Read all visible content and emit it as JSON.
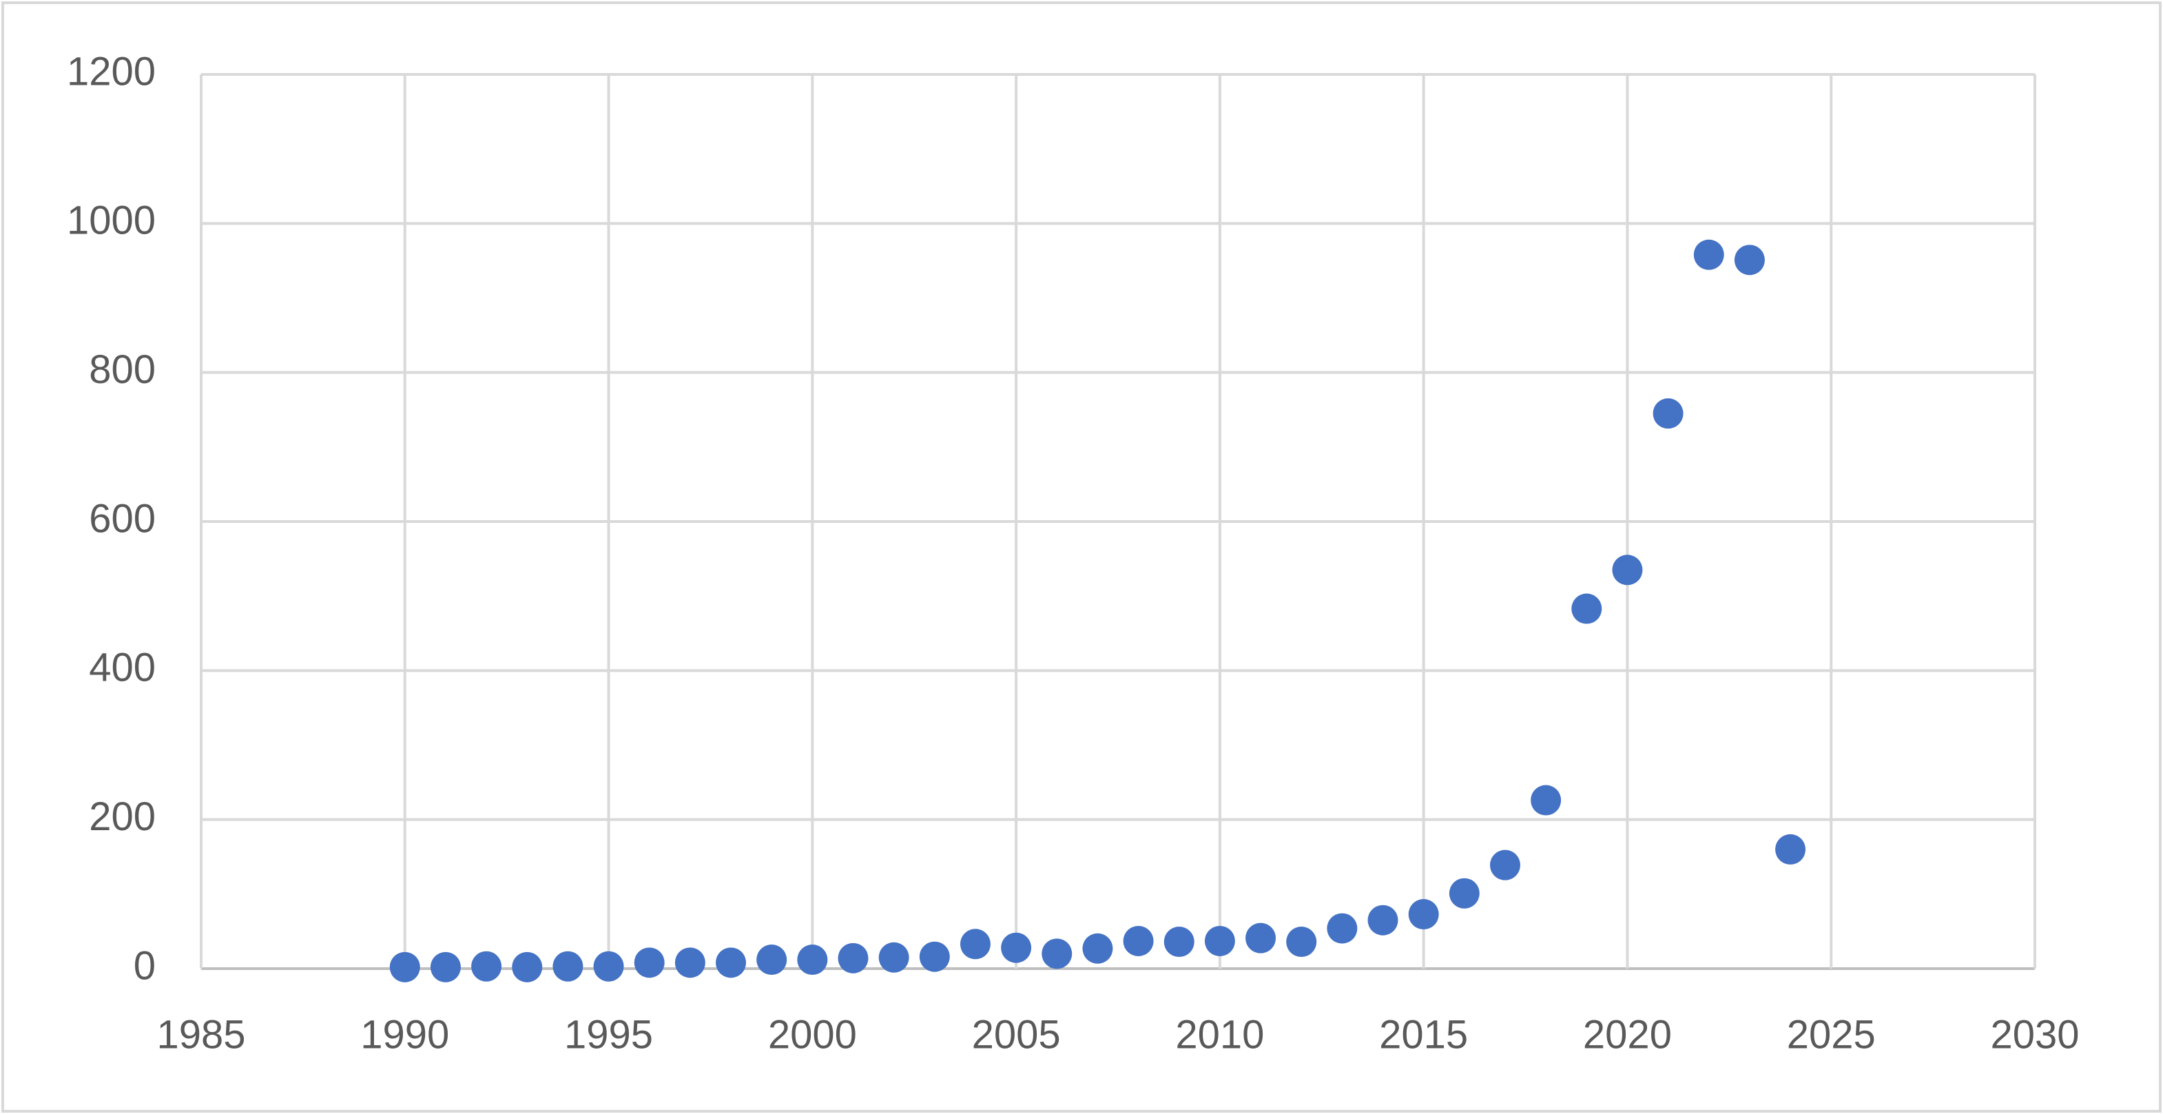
{
  "chart_data": {
    "type": "scatter",
    "x": [
      1990,
      1991,
      1992,
      1993,
      1994,
      1995,
      1996,
      1997,
      1998,
      1999,
      2000,
      2001,
      2002,
      2003,
      2004,
      2005,
      2006,
      2007,
      2008,
      2009,
      2010,
      2011,
      2012,
      2013,
      2014,
      2015,
      2016,
      2017,
      2018,
      2019,
      2020,
      2021,
      2022,
      2023,
      2024
    ],
    "values": [
      2,
      2,
      3,
      2,
      3,
      3,
      8,
      8,
      8,
      12,
      12,
      14,
      15,
      16,
      33,
      28,
      20,
      27,
      37,
      36,
      37,
      41,
      36,
      54,
      65,
      73,
      101,
      139,
      226,
      483,
      535,
      745,
      958,
      951,
      160
    ],
    "color": "#4472c4",
    "xlim": [
      1985,
      2030
    ],
    "xticks": [
      1985,
      1990,
      1995,
      2000,
      2005,
      2010,
      2015,
      2020,
      2025,
      2030
    ],
    "ylim": [
      0,
      1200
    ],
    "yticks": [
      0,
      200,
      400,
      600,
      800,
      1000,
      1200
    ],
    "grid": true
  }
}
